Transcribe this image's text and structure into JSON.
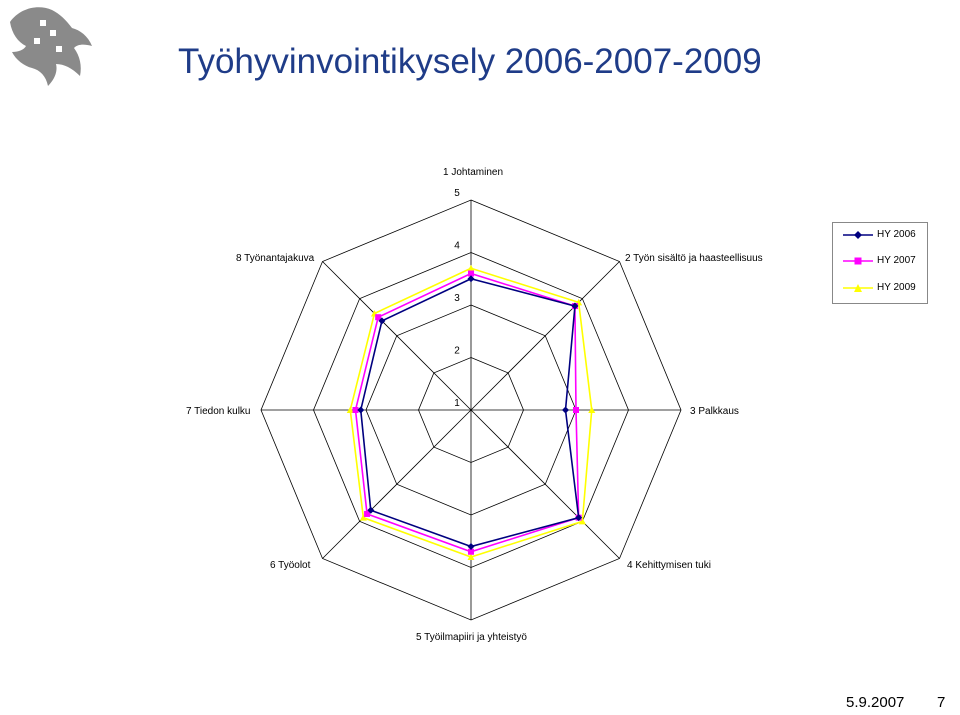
{
  "slide": {
    "title": "Työhyvinvointikysely 2006-2007-2009",
    "date": "5.9.2007",
    "page_number": "7",
    "logo_icon": "university-logo-icon"
  },
  "chart_data": {
    "type": "radar",
    "categories": [
      "1 Johtaminen",
      "2 Työn sisältö ja haasteellisuus",
      "3 Palkkaus",
      "4 Kehittymisen tuki",
      "5 Työilmapiiri ja yhteistyö",
      "6 Työolot",
      "7 Tiedon kulku",
      "8 Työnantajakuva"
    ],
    "axis_ticks": [
      "1",
      "2",
      "3",
      "4",
      "5"
    ],
    "rlim": [
      1,
      5
    ],
    "legend_position": "top-right",
    "series": [
      {
        "name": "HY 2006",
        "color": "#000080",
        "marker": "diamond",
        "values": [
          3.5,
          3.8,
          2.8,
          3.9,
          3.6,
          3.7,
          3.1,
          3.4
        ]
      },
      {
        "name": "HY 2007",
        "color": "#ff00ff",
        "marker": "square",
        "values": [
          3.6,
          3.8,
          3.0,
          3.9,
          3.7,
          3.8,
          3.2,
          3.5
        ]
      },
      {
        "name": "HY 2009",
        "color": "#ffff00",
        "marker": "triangle",
        "values": [
          3.7,
          3.9,
          3.3,
          4.0,
          3.8,
          3.9,
          3.3,
          3.6
        ]
      }
    ]
  }
}
